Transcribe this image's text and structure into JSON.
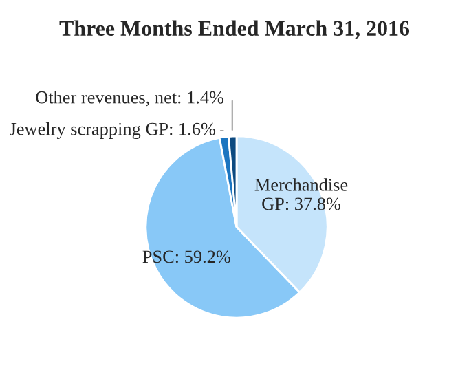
{
  "chart_data": {
    "type": "pie",
    "title": "Three Months Ended March 31, 2016",
    "categories": [
      "Merchandise GP",
      "PSC",
      "Jewelry scrapping GP",
      "Other revenues, net"
    ],
    "values": [
      37.8,
      59.2,
      1.6,
      1.4
    ],
    "value_labels": [
      "37.8%",
      "59.2%",
      "1.6%",
      "1.4%"
    ],
    "colors": [
      "#c5e4fb",
      "#88c8f7",
      "#1b75c0",
      "#0d4a80"
    ]
  }
}
